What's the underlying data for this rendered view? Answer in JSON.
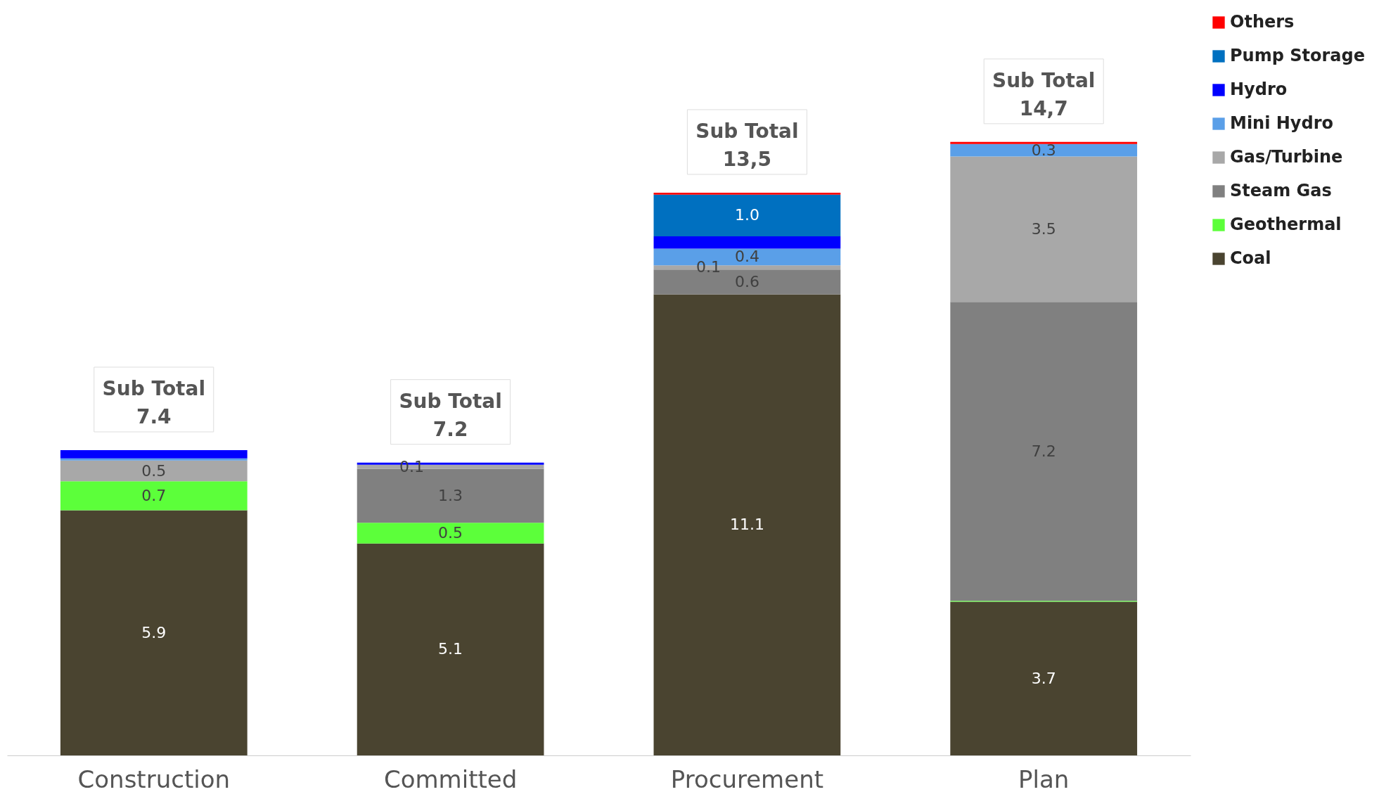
{
  "chart_data": {
    "type": "bar",
    "stacked": true,
    "categories": [
      "Construction",
      "Committed",
      "Procurement",
      "Plan"
    ],
    "series": [
      {
        "name": "Coal",
        "color": "#4a4430",
        "values": [
          5.9,
          5.1,
          11.1,
          3.7
        ],
        "value_labels": [
          "5.9",
          "5.1",
          "11.1",
          "3.7"
        ]
      },
      {
        "name": "Geothermal",
        "color": "#5cff3a",
        "values": [
          0.7,
          0.5,
          null,
          0.02
        ],
        "value_labels": [
          "0.7",
          "0.5",
          null,
          null
        ]
      },
      {
        "name": "Steam Gas",
        "color": "#808080",
        "values": [
          null,
          1.3,
          0.6,
          7.2
        ],
        "value_labels": [
          null,
          "1.3",
          "0.6",
          "7.2"
        ]
      },
      {
        "name": "Gas/Turbine",
        "color": "#a8a8a8",
        "values": [
          0.5,
          0.1,
          0.1,
          3.5
        ],
        "value_labels": [
          "0.5",
          "0.1",
          "0.1",
          "3.5"
        ]
      },
      {
        "name": "Mini Hydro",
        "color": "#5a9fe8",
        "values": [
          0.05,
          null,
          0.4,
          0.3
        ],
        "value_labels": [
          null,
          null,
          "0.4",
          "0.3"
        ]
      },
      {
        "name": "Hydro",
        "color": "#0000ff",
        "values": [
          0.2,
          0.05,
          0.3,
          null
        ],
        "value_labels": [
          null,
          null,
          null,
          null
        ]
      },
      {
        "name": "Pump Storage",
        "color": "#0070c0",
        "values": [
          null,
          null,
          1.0,
          null
        ],
        "value_labels": [
          null,
          null,
          "1.0",
          null
        ]
      },
      {
        "name": "Others",
        "color": "#ff0000",
        "values": [
          null,
          null,
          0.05,
          0.05
        ],
        "value_labels": [
          null,
          null,
          null,
          null
        ]
      }
    ],
    "totals": [
      "Sub Total\n7.4",
      "Sub Total\n7.2",
      "Sub Total\n13,5",
      "Sub Total\n14,7"
    ],
    "legend": "right",
    "grid": false
  }
}
